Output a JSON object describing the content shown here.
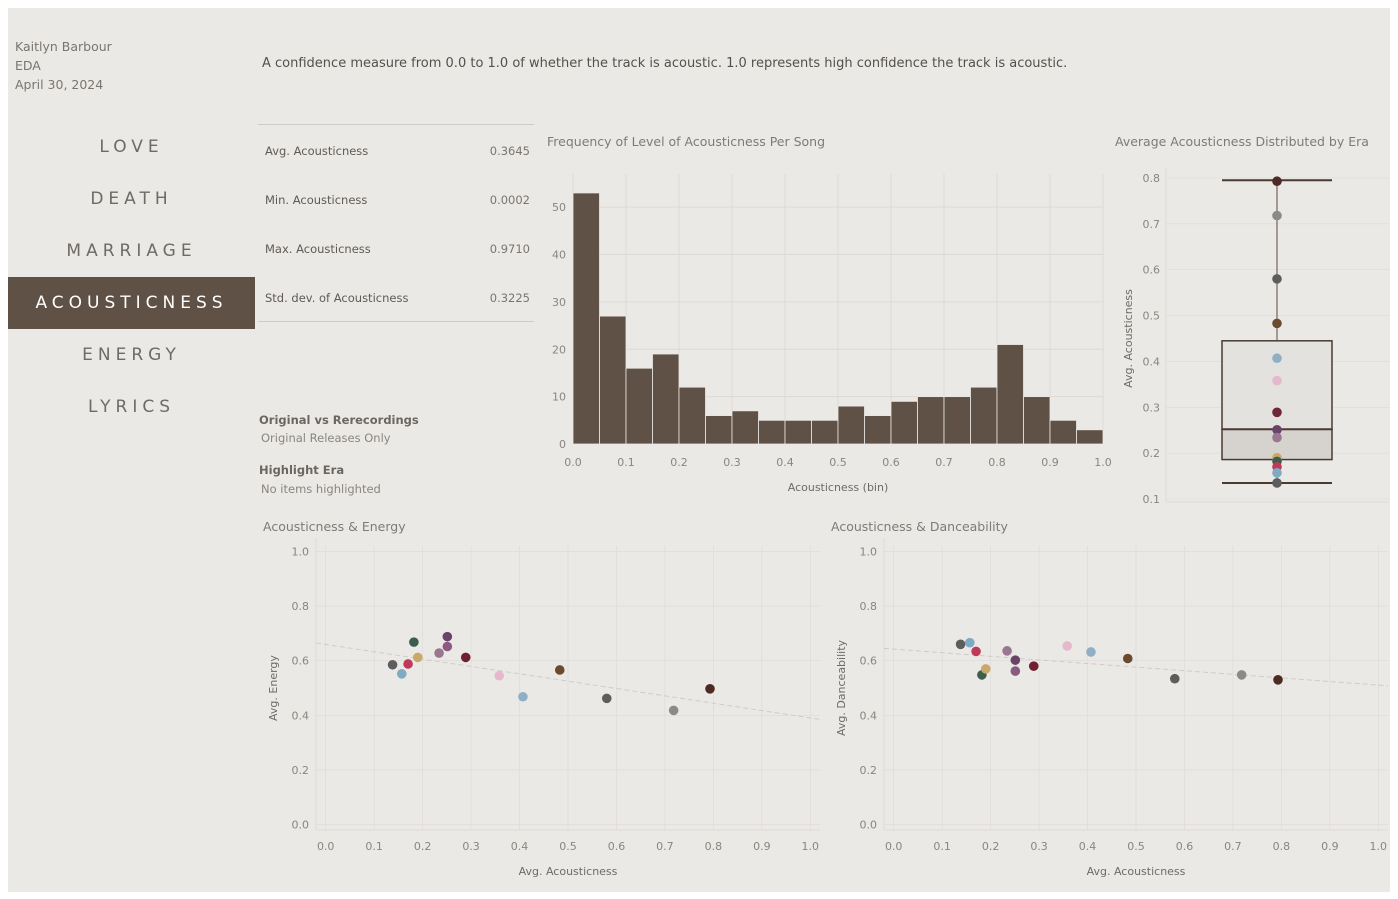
{
  "header": {
    "author": "Kaitlyn Barbour",
    "project": "EDA",
    "date": "April 30, 2024"
  },
  "nav": {
    "items": [
      "LOVE",
      "DEATH",
      "MARRIAGE",
      "ACOUSTICNESS",
      "ENERGY",
      "LYRICS"
    ],
    "active": "ACOUSTICNESS"
  },
  "description": "A confidence measure from 0.0 to 1.0 of whether the track is acoustic. 1.0 represents high confidence the track is acoustic.",
  "stats": [
    {
      "label": "Avg. Acousticness",
      "value": "0.3645"
    },
    {
      "label": "Min. Acousticness",
      "value": "0.0002"
    },
    {
      "label": "Max. Acousticness",
      "value": "0.9710"
    },
    {
      "label": "Std. dev. of Acousticness",
      "value": "0.3225"
    }
  ],
  "filters": {
    "recordings_label": "Original vs Rerecordings",
    "recordings_value": "Original Releases Only",
    "era_label": "Highlight Era",
    "era_value": "No items highlighted"
  },
  "colors": {
    "accent": "#5f5145",
    "background": "#ebe9e6",
    "grid": "#dcd9d5"
  },
  "chart_data": [
    {
      "type": "bar",
      "title": "Frequency of Level of Acousticness Per Song",
      "xlabel": "Acousticness (bin)",
      "ylabel": "",
      "bin_width": 0.05,
      "bin_starts": [
        0.0,
        0.05,
        0.1,
        0.15,
        0.2,
        0.25,
        0.3,
        0.35,
        0.4,
        0.45,
        0.5,
        0.55,
        0.6,
        0.65,
        0.7,
        0.75,
        0.8,
        0.85,
        0.9,
        0.95
      ],
      "values": [
        53,
        27,
        16,
        19,
        12,
        6,
        7,
        5,
        5,
        5,
        8,
        6,
        9,
        10,
        10,
        12,
        21,
        10,
        5,
        3
      ],
      "xticks": [
        "0.0",
        "0.1",
        "0.2",
        "0.3",
        "0.4",
        "0.5",
        "0.6",
        "0.7",
        "0.8",
        "0.9",
        "1.0"
      ],
      "yticks": [
        "0",
        "10",
        "20",
        "30",
        "40",
        "50"
      ],
      "xlim": [
        0,
        1.0
      ],
      "ylim": [
        0,
        57
      ]
    },
    {
      "type": "box",
      "title": "Average Acousticness Distributed by Era",
      "ylabel": "Avg. Acousticness",
      "ylim": [
        0.1,
        0.8
      ],
      "yticks": [
        "0.1",
        "0.2",
        "0.3",
        "0.4",
        "0.5",
        "0.6",
        "0.7",
        "0.8"
      ],
      "whisker_low": 0.135,
      "q1": 0.186,
      "median": 0.252,
      "q3": 0.445,
      "whisker_high": 0.795,
      "points": [
        {
          "y": 0.793,
          "color": "#4e2a24"
        },
        {
          "y": 0.718,
          "color": "#8c8a87"
        },
        {
          "y": 0.58,
          "color": "#5d5d5d"
        },
        {
          "y": 0.483,
          "color": "#6b4a2e"
        },
        {
          "y": 0.407,
          "color": "#8fb0c4"
        },
        {
          "y": 0.358,
          "color": "#e6b8cc"
        },
        {
          "y": 0.289,
          "color": "#6e2838"
        },
        {
          "y": 0.251,
          "color": "#6a4468"
        },
        {
          "y": 0.234,
          "color": "#9a7690"
        },
        {
          "y": 0.19,
          "color": "#c9a86a"
        },
        {
          "y": 0.182,
          "color": "#3d5e4c"
        },
        {
          "y": 0.17,
          "color": "#c0395a"
        },
        {
          "y": 0.157,
          "color": "#7eaac4"
        },
        {
          "y": 0.135,
          "color": "#5d5d5d"
        }
      ]
    },
    {
      "type": "scatter",
      "title": "Acousticness & Energy",
      "xlabel": "Avg. Acousticness",
      "ylabel": "Avg. Energy",
      "xlim": [
        -0.02,
        1.02
      ],
      "ylim": [
        -0.02,
        1.02
      ],
      "xticks": [
        "0.0",
        "0.1",
        "0.2",
        "0.3",
        "0.4",
        "0.5",
        "0.6",
        "0.7",
        "0.8",
        "0.9",
        "1.0"
      ],
      "yticks": [
        "0.0",
        "0.2",
        "0.4",
        "0.6",
        "0.8",
        "1.0"
      ],
      "trend": [
        [
          -0.02,
          0.665
        ],
        [
          1.02,
          0.385
        ]
      ],
      "points": [
        {
          "x": 0.138,
          "y": 0.585,
          "color": "#5d5d5d"
        },
        {
          "x": 0.157,
          "y": 0.552,
          "color": "#7eaac4"
        },
        {
          "x": 0.17,
          "y": 0.588,
          "color": "#c0395a"
        },
        {
          "x": 0.182,
          "y": 0.668,
          "color": "#3d5e4c"
        },
        {
          "x": 0.19,
          "y": 0.612,
          "color": "#c9a86a"
        },
        {
          "x": 0.234,
          "y": 0.628,
          "color": "#9a7690"
        },
        {
          "x": 0.251,
          "y": 0.688,
          "color": "#6a4468"
        },
        {
          "x": 0.251,
          "y": 0.652,
          "color": "#8a5a80"
        },
        {
          "x": 0.289,
          "y": 0.612,
          "color": "#6e2030"
        },
        {
          "x": 0.358,
          "y": 0.545,
          "color": "#e6b8cc"
        },
        {
          "x": 0.407,
          "y": 0.468,
          "color": "#8fb0c4"
        },
        {
          "x": 0.483,
          "y": 0.566,
          "color": "#6b4a2e"
        },
        {
          "x": 0.58,
          "y": 0.462,
          "color": "#5d5d5d"
        },
        {
          "x": 0.718,
          "y": 0.418,
          "color": "#8c8a87"
        },
        {
          "x": 0.793,
          "y": 0.497,
          "color": "#4e2a24"
        }
      ]
    },
    {
      "type": "scatter",
      "title": "Acousticness & Danceability",
      "xlabel": "Avg. Acousticness",
      "ylabel": "Avg. Danceability",
      "xlim": [
        -0.02,
        1.02
      ],
      "ylim": [
        -0.02,
        1.02
      ],
      "xticks": [
        "0.0",
        "0.1",
        "0.2",
        "0.3",
        "0.4",
        "0.5",
        "0.6",
        "0.7",
        "0.8",
        "0.9",
        "1.0"
      ],
      "yticks": [
        "0.0",
        "0.2",
        "0.4",
        "0.6",
        "0.8",
        "1.0"
      ],
      "trend": [
        [
          -0.02,
          0.645
        ],
        [
          1.02,
          0.508
        ]
      ],
      "points": [
        {
          "x": 0.138,
          "y": 0.66,
          "color": "#5d5d5d"
        },
        {
          "x": 0.157,
          "y": 0.666,
          "color": "#7eaac4"
        },
        {
          "x": 0.17,
          "y": 0.634,
          "color": "#c0395a"
        },
        {
          "x": 0.182,
          "y": 0.548,
          "color": "#3d5e4c"
        },
        {
          "x": 0.19,
          "y": 0.57,
          "color": "#c9a86a"
        },
        {
          "x": 0.234,
          "y": 0.636,
          "color": "#9a7690"
        },
        {
          "x": 0.251,
          "y": 0.602,
          "color": "#6a4468"
        },
        {
          "x": 0.251,
          "y": 0.562,
          "color": "#8a5a80"
        },
        {
          "x": 0.289,
          "y": 0.58,
          "color": "#6e2030"
        },
        {
          "x": 0.358,
          "y": 0.654,
          "color": "#e6b8cc"
        },
        {
          "x": 0.407,
          "y": 0.632,
          "color": "#8fb0c4"
        },
        {
          "x": 0.483,
          "y": 0.608,
          "color": "#6b4a2e"
        },
        {
          "x": 0.58,
          "y": 0.534,
          "color": "#5d5d5d"
        },
        {
          "x": 0.718,
          "y": 0.548,
          "color": "#8c8a87"
        },
        {
          "x": 0.793,
          "y": 0.53,
          "color": "#4e2a24"
        }
      ]
    }
  ]
}
